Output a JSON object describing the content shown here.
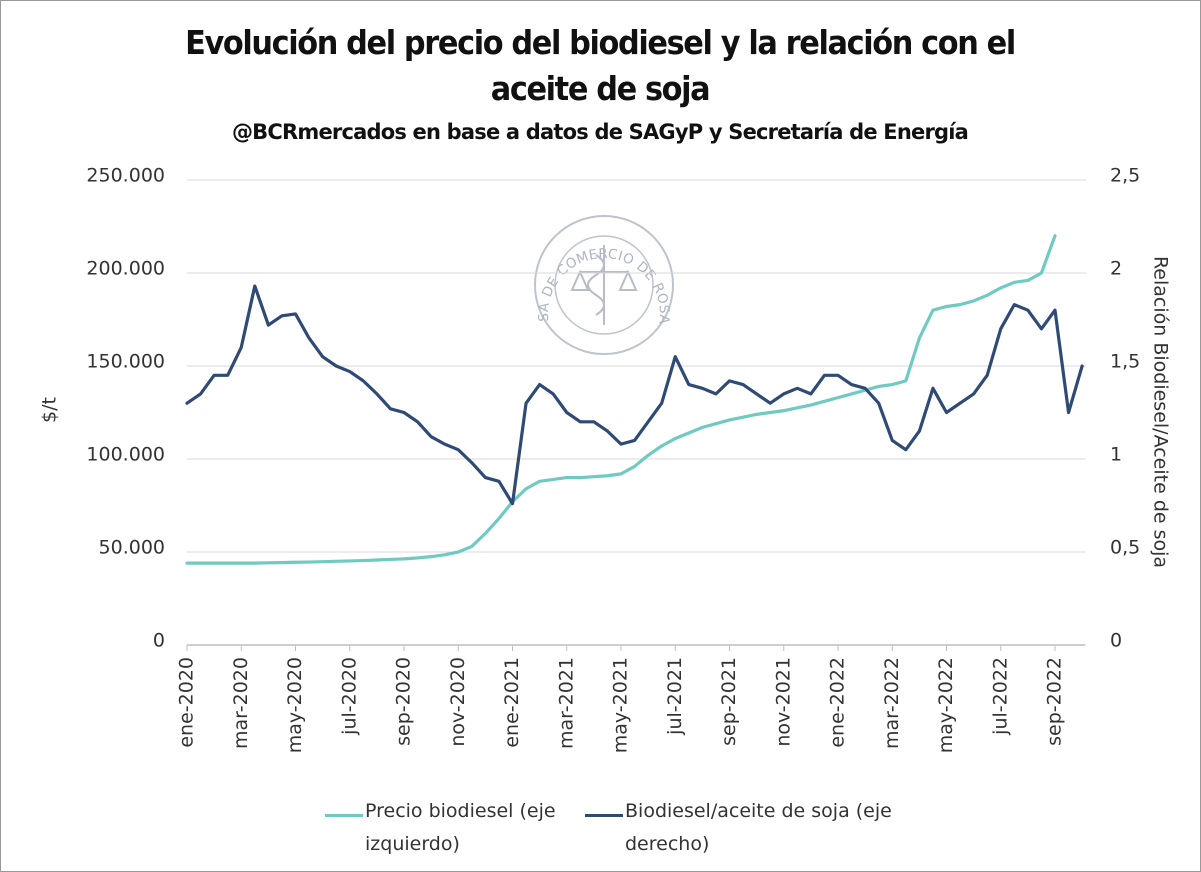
{
  "chart_data": {
    "type": "line",
    "title": "Evolución del precio del biodiesel y la relación con el aceite de soja",
    "subtitle": "@BCRmercados en base a datos de SAGyP y Secretaría de Energía",
    "watermark": "BOLSA DE COMERCIO DE ROSARIO",
    "y_label": "$/t",
    "y2_label": "Relación Biodiesel/Aceite  de soja",
    "categories": [
      "ene-2020",
      null,
      null,
      null,
      "mar-2020",
      null,
      null,
      null,
      "may-2020",
      null,
      null,
      null,
      "jul-2020",
      null,
      null,
      null,
      "sep-2020",
      null,
      null,
      null,
      "nov-2020",
      null,
      null,
      null,
      "ene-2021",
      null,
      null,
      null,
      "mar-2021",
      null,
      null,
      null,
      "may-2021",
      null,
      null,
      null,
      "jul-2021",
      null,
      null,
      null,
      "sep-2021",
      null,
      null,
      null,
      "nov-2021",
      null,
      null,
      null,
      "ene-2022",
      null,
      null,
      null,
      "mar-2022",
      null,
      null,
      null,
      "may-2022",
      null,
      null,
      null,
      "jul-2022",
      null,
      null,
      null,
      "sep-2022",
      null,
      null
    ],
    "series": [
      {
        "name": "Precio biodiesel (eje izquierdo)",
        "color": "#6fcac1",
        "axis": "y",
        "values": [
          44000,
          44000,
          44000,
          44000,
          44000,
          44000,
          44200,
          44300,
          44500,
          44600,
          44800,
          45000,
          45200,
          45400,
          45700,
          46000,
          46300,
          46800,
          47500,
          48500,
          50000,
          53000,
          60000,
          68000,
          77000,
          84000,
          88000,
          89000,
          90000,
          90000,
          90500,
          91000,
          92000,
          96000,
          102000,
          107000,
          111000,
          114000,
          117000,
          119000,
          121000,
          122500,
          124000,
          125000,
          126000,
          127500,
          129000,
          131000,
          133000,
          135000,
          137000,
          139000,
          140000,
          142000,
          165000,
          180000,
          182000,
          183000,
          185000,
          188000,
          192000,
          195000,
          196000,
          200000,
          220000,
          null,
          null
        ]
      },
      {
        "name": "Biodiesel/aceite de soja (eje derecho)",
        "color": "#2f4a75",
        "axis": "y2",
        "values": [
          1.3,
          1.35,
          1.45,
          1.45,
          1.6,
          1.93,
          1.72,
          1.77,
          1.78,
          1.65,
          1.55,
          1.5,
          1.47,
          1.42,
          1.35,
          1.27,
          1.25,
          1.2,
          1.12,
          1.08,
          1.05,
          0.98,
          0.9,
          0.88,
          0.76,
          1.3,
          1.4,
          1.35,
          1.25,
          1.2,
          1.2,
          1.15,
          1.08,
          1.1,
          1.2,
          1.3,
          1.55,
          1.4,
          1.38,
          1.35,
          1.42,
          1.4,
          1.35,
          1.3,
          1.35,
          1.38,
          1.35,
          1.45,
          1.45,
          1.4,
          1.38,
          1.3,
          1.1,
          1.05,
          1.15,
          1.38,
          1.25,
          1.3,
          1.35,
          1.45,
          1.7,
          1.83,
          1.8,
          1.7,
          1.8,
          1.25,
          1.5
        ]
      }
    ],
    "ylim": [
      0,
      250000
    ],
    "yticks": [
      0,
      {
        "value": 50000,
        "label": "50.000"
      },
      {
        "value": 100000,
        "label": "100.000"
      },
      {
        "value": 150000,
        "label": "150.000"
      },
      {
        "value": 200000,
        "label": "200.000"
      },
      {
        "value": 250000,
        "label": "250.000"
      }
    ],
    "y2lim": [
      0,
      2.5
    ],
    "y2ticks": [
      0,
      {
        "value": 0.5,
        "label": "0,5"
      },
      1,
      {
        "value": 1.5,
        "label": "1,5"
      },
      2,
      {
        "value": 2.5,
        "label": "2,5"
      }
    ],
    "grid": true,
    "legend": "bottom"
  }
}
